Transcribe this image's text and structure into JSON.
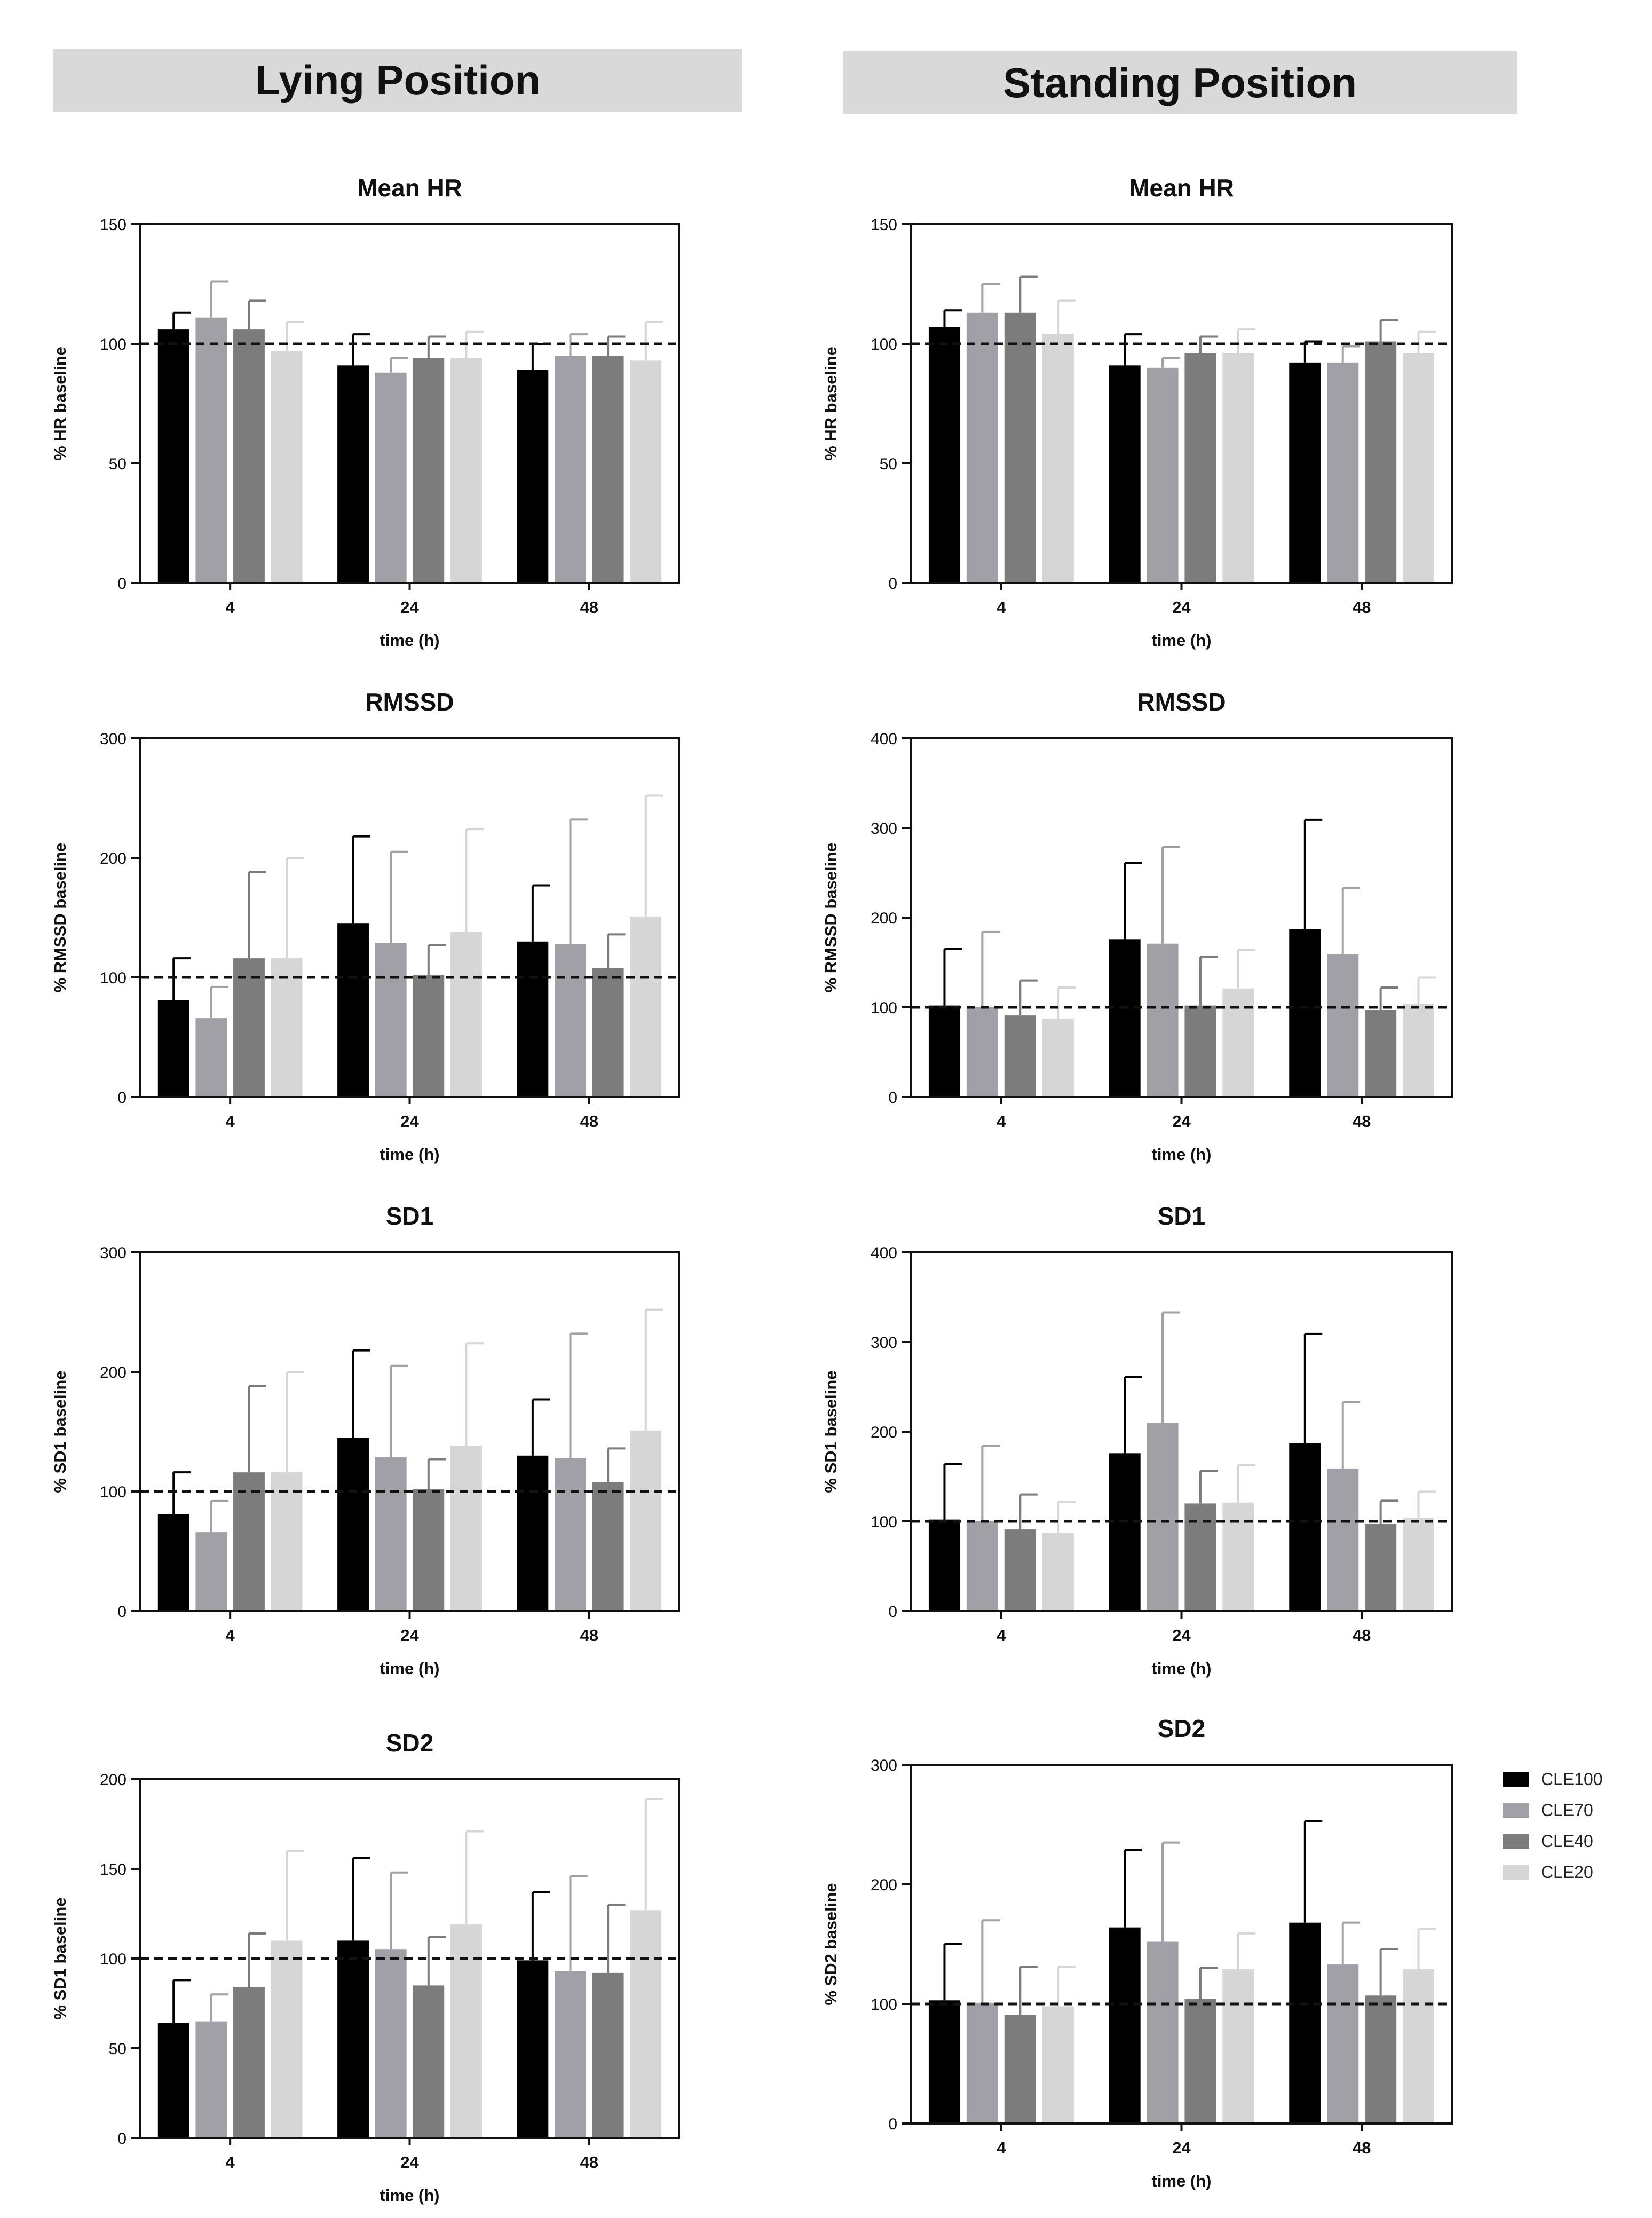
{
  "headers": {
    "lying": "Lying Position",
    "standing": "Standing Position"
  },
  "colors": {
    "CLE100": "#000000",
    "CLE70": "#a0a0a6",
    "CLE40": "#7c7c7c",
    "CLE20": "#d6d6d6"
  },
  "legend": [
    "CLE100",
    "CLE70",
    "CLE40",
    "CLE20"
  ],
  "chart_data": [
    {
      "panel": "lying",
      "type": "bar",
      "title": "Mean HR",
      "xlabel": "time (h)",
      "ylabel": "% HR baseline",
      "categories": [
        "4",
        "24",
        "48"
      ],
      "ylim": [
        0,
        150
      ],
      "yticks": [
        0,
        50,
        100,
        150
      ],
      "reference_line": 100,
      "series": [
        {
          "name": "CLE100",
          "values": [
            106,
            91,
            89
          ],
          "errors": [
            7,
            13,
            11
          ]
        },
        {
          "name": "CLE70",
          "values": [
            111,
            88,
            95
          ],
          "errors": [
            15,
            6,
            9
          ]
        },
        {
          "name": "CLE40",
          "values": [
            106,
            94,
            95
          ],
          "errors": [
            12,
            9,
            8
          ]
        },
        {
          "name": "CLE20",
          "values": [
            97,
            94,
            93
          ],
          "errors": [
            12,
            11,
            16
          ]
        }
      ]
    },
    {
      "panel": "lying",
      "type": "bar",
      "title": "RMSSD",
      "xlabel": "time (h)",
      "ylabel": "% RMSSD baseline",
      "categories": [
        "4",
        "24",
        "48"
      ],
      "ylim": [
        0,
        300
      ],
      "yticks": [
        0,
        100,
        200,
        300
      ],
      "reference_line": 100,
      "series": [
        {
          "name": "CLE100",
          "values": [
            81,
            145,
            130
          ],
          "errors": [
            35,
            73,
            47
          ]
        },
        {
          "name": "CLE70",
          "values": [
            66,
            129,
            128
          ],
          "errors": [
            26,
            76,
            104
          ]
        },
        {
          "name": "CLE40",
          "values": [
            116,
            102,
            108
          ],
          "errors": [
            72,
            25,
            28
          ]
        },
        {
          "name": "CLE20",
          "values": [
            116,
            138,
            151
          ],
          "errors": [
            84,
            86,
            101
          ]
        }
      ]
    },
    {
      "panel": "lying",
      "type": "bar",
      "title": "SD1",
      "xlabel": "time (h)",
      "ylabel": "% SD1 baseline",
      "categories": [
        "4",
        "24",
        "48"
      ],
      "ylim": [
        0,
        300
      ],
      "yticks": [
        0,
        100,
        200,
        300
      ],
      "reference_line": 100,
      "series": [
        {
          "name": "CLE100",
          "values": [
            81,
            145,
            130
          ],
          "errors": [
            35,
            73,
            47
          ]
        },
        {
          "name": "CLE70",
          "values": [
            66,
            129,
            128
          ],
          "errors": [
            26,
            76,
            104
          ]
        },
        {
          "name": "CLE40",
          "values": [
            116,
            102,
            108
          ],
          "errors": [
            72,
            25,
            28
          ]
        },
        {
          "name": "CLE20",
          "values": [
            116,
            138,
            151
          ],
          "errors": [
            84,
            86,
            101
          ]
        }
      ]
    },
    {
      "panel": "lying",
      "type": "bar",
      "title": "SD2",
      "xlabel": "time (h)",
      "ylabel": "% SD1 baseline",
      "categories": [
        "4",
        "24",
        "48"
      ],
      "ylim": [
        0,
        200
      ],
      "yticks": [
        0,
        50,
        100,
        150,
        200
      ],
      "reference_line": 100,
      "series": [
        {
          "name": "CLE100",
          "values": [
            64,
            110,
            99
          ],
          "errors": [
            24,
            46,
            38
          ]
        },
        {
          "name": "CLE70",
          "values": [
            65,
            105,
            93
          ],
          "errors": [
            15,
            43,
            53
          ]
        },
        {
          "name": "CLE40",
          "values": [
            84,
            85,
            92
          ],
          "errors": [
            30,
            27,
            38
          ]
        },
        {
          "name": "CLE20",
          "values": [
            110,
            119,
            127
          ],
          "errors": [
            50,
            52,
            62
          ]
        }
      ]
    },
    {
      "panel": "standing",
      "type": "bar",
      "title": "Mean HR",
      "xlabel": "time (h)",
      "ylabel": "% HR baseline",
      "categories": [
        "4",
        "24",
        "48"
      ],
      "ylim": [
        0,
        150
      ],
      "yticks": [
        0,
        50,
        100,
        150
      ],
      "reference_line": 100,
      "series": [
        {
          "name": "CLE100",
          "values": [
            107,
            91,
            92
          ],
          "errors": [
            7,
            13,
            9
          ]
        },
        {
          "name": "CLE70",
          "values": [
            113,
            90,
            92
          ],
          "errors": [
            12,
            4,
            7
          ]
        },
        {
          "name": "CLE40",
          "values": [
            113,
            96,
            101
          ],
          "errors": [
            15,
            7,
            9
          ]
        },
        {
          "name": "CLE20",
          "values": [
            104,
            96,
            96
          ],
          "errors": [
            14,
            10,
            9
          ]
        }
      ]
    },
    {
      "panel": "standing",
      "type": "bar",
      "title": "RMSSD",
      "xlabel": "time (h)",
      "ylabel": "% RMSSD baseline",
      "categories": [
        "4",
        "24",
        "48"
      ],
      "ylim": [
        0,
        400
      ],
      "yticks": [
        0,
        100,
        200,
        300,
        400
      ],
      "reference_line": 100,
      "series": [
        {
          "name": "CLE100",
          "values": [
            102,
            176,
            187
          ],
          "errors": [
            63,
            85,
            122
          ]
        },
        {
          "name": "CLE70",
          "values": [
            100,
            171,
            159
          ],
          "errors": [
            84,
            108,
            74
          ]
        },
        {
          "name": "CLE40",
          "values": [
            91,
            102,
            97
          ],
          "errors": [
            39,
            54,
            25
          ]
        },
        {
          "name": "CLE20",
          "values": [
            87,
            121,
            104
          ],
          "errors": [
            35,
            43,
            29
          ]
        }
      ]
    },
    {
      "panel": "standing",
      "type": "bar",
      "title": "SD1",
      "xlabel": "time (h)",
      "ylabel": "% SD1 baseline",
      "categories": [
        "4",
        "24",
        "48"
      ],
      "ylim": [
        0,
        400
      ],
      "yticks": [
        0,
        100,
        200,
        300,
        400
      ],
      "reference_line": 100,
      "series": [
        {
          "name": "CLE100",
          "values": [
            102,
            176,
            187
          ],
          "errors": [
            62,
            85,
            122
          ]
        },
        {
          "name": "CLE70",
          "values": [
            100,
            210,
            159
          ],
          "errors": [
            84,
            123,
            74
          ]
        },
        {
          "name": "CLE40",
          "values": [
            91,
            120,
            97
          ],
          "errors": [
            39,
            36,
            26
          ]
        },
        {
          "name": "CLE20",
          "values": [
            87,
            121,
            104
          ],
          "errors": [
            35,
            42,
            29
          ]
        }
      ]
    },
    {
      "panel": "standing",
      "type": "bar",
      "title": "SD2",
      "xlabel": "time (h)",
      "ylabel": "% SD2 baseline",
      "categories": [
        "4",
        "24",
        "48"
      ],
      "ylim": [
        0,
        300
      ],
      "yticks": [
        0,
        100,
        200,
        300
      ],
      "reference_line": 100,
      "series": [
        {
          "name": "CLE100",
          "values": [
            103,
            164,
            168
          ],
          "errors": [
            47,
            65,
            85
          ]
        },
        {
          "name": "CLE70",
          "values": [
            101,
            152,
            133
          ],
          "errors": [
            69,
            83,
            35
          ]
        },
        {
          "name": "CLE40",
          "values": [
            91,
            104,
            107
          ],
          "errors": [
            40,
            26,
            39
          ]
        },
        {
          "name": "CLE20",
          "values": [
            98,
            129,
            129
          ],
          "errors": [
            33,
            30,
            34
          ]
        }
      ]
    }
  ]
}
